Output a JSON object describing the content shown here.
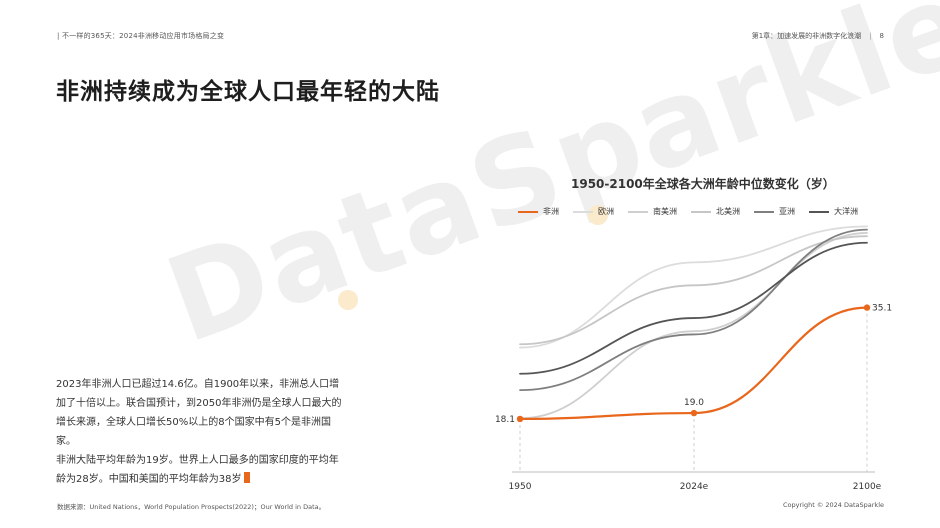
{
  "header": {
    "left": "| 不一样的365天：2024非洲移动应用市场格局之变",
    "chapter": "第1章：加速发展的非洲数字化浪潮",
    "divider": "|",
    "page": "8"
  },
  "title": "非洲持续成为全球人口最年轻的大陆",
  "watermark": "DataSparkle",
  "body": {
    "p1": "2023年非洲人口已超过14.6亿。自1900年以来，非洲总人口增加了十倍以上。联合国预计，到2050年非洲仍是全球人口最大的增长来源，全球人口增长50%以上的8个国家中有5个是非洲国家。",
    "p2": "非洲大陆平均年龄为19岁。世界上人口最多的国家印度的平均年龄为28岁。中国和美国的平均年龄为38岁"
  },
  "footer": {
    "source": "数据来源：United Nations，World Population Prospects(2022)；Our World in Data。",
    "copyright": "Copyright © 2024 DataSparkle"
  },
  "chart_data": {
    "type": "line",
    "title": "1950-2100年全球各大洲年龄中位数变化（岁）",
    "x": [
      "1950",
      "2024e",
      "2100e"
    ],
    "ylim": [
      10,
      50
    ],
    "grid": false,
    "legend_position": "top",
    "series": [
      {
        "name": "非洲",
        "color": "#e8671c",
        "values": [
          18.1,
          19.0,
          35.1
        ],
        "labeled": true
      },
      {
        "name": "欧洲",
        "color": "#dcdcdc",
        "values": [
          29.0,
          42.0,
          47.5
        ]
      },
      {
        "name": "南美洲",
        "color": "#cfcfcf",
        "values": [
          18.2,
          31.5,
          46.5
        ]
      },
      {
        "name": "北美洲",
        "color": "#c6c6c6",
        "values": [
          29.5,
          38.5,
          46.0
        ]
      },
      {
        "name": "亚洲",
        "color": "#7f7f7f",
        "values": [
          22.5,
          31.0,
          47.0
        ]
      },
      {
        "name": "大洋洲",
        "color": "#555555",
        "values": [
          25.0,
          33.5,
          45.0
        ]
      }
    ]
  }
}
